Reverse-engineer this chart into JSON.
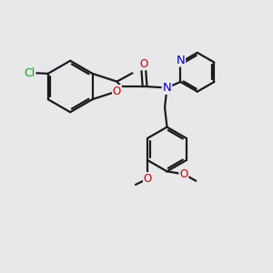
{
  "background_color": "#e8e8ea",
  "bond_color": "#1a1a1a",
  "bond_width": 1.6,
  "atom_colors": {
    "C": "#1a1a1a",
    "N": "#0000cc",
    "O": "#cc0000",
    "Cl": "#00aa00"
  },
  "font_size": 8.5,
  "fig_size": [
    3.0,
    3.0
  ],
  "dpi": 100
}
